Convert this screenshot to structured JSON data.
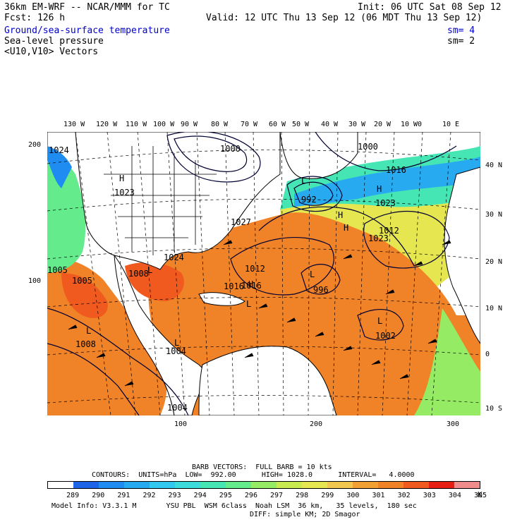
{
  "header": {
    "line1_left": "36km EM-WRF -- NCAR/MMM for TC",
    "line1_right": "Init: 06 UTC Sat 08 Sep 12",
    "line2_left": "Fcst: 126 h",
    "line2_right": "Valid: 12 UTC Thu 13 Sep 12 (06 MDT Thu 13 Sep 12)",
    "field1": "Ground/sea-surface temperature",
    "field1_sm": "sm= 4",
    "field2": "Sea-level pressure",
    "field2_sm": "sm= 2",
    "field3": "<U10,V10> Vectors"
  },
  "axes": {
    "top_lon_labels": [
      "130 W",
      "120 W",
      "110 W",
      "100 W",
      "90 W",
      "80 W",
      "70 W",
      "60 W",
      "50 W",
      "40 W",
      "30 W",
      "20 W",
      "10 W",
      "0",
      "10 E"
    ],
    "right_lat_labels": [
      "40 N",
      "30 N",
      "20 N",
      "10 N",
      "0",
      "10 S"
    ],
    "left_grid_labels": [
      "200",
      "100"
    ],
    "bottom_grid_labels": [
      "100",
      "200",
      "300"
    ]
  },
  "isobar_labels": [
    "1024",
    "1000",
    "1000",
    "1005",
    "1016",
    "1023",
    "992",
    "1023",
    "1027",
    "1012",
    "1016",
    "1023",
    "1024",
    "1012",
    "1008",
    "1005",
    "1016",
    "996",
    "1008",
    "1002",
    "1004",
    "1004"
  ],
  "pressure_markers": [
    "H",
    "H",
    "L",
    "L",
    "H",
    "H",
    "H",
    "L",
    "L",
    "L",
    "L",
    "L"
  ],
  "footer": {
    "barb_line": "BARB VECTORS:  FULL BARB = 10 kts",
    "contours_line": "CONTOURS:  UNITS=hPa  LOW=  992.00      HIGH= 1028.0      INTERVAL=   4.0000",
    "model_info": "Model Info: V3.3.1 M       YSU PBL  WSM 6class  Noah LSM  36 km,   35 levels,  180 sec",
    "diff_line": "DIFF: simple KM; 2D Smagor",
    "unit": "K"
  },
  "colorbar": {
    "labels": [
      "289",
      "290",
      "291",
      "292",
      "293",
      "294",
      "295",
      "296",
      "297",
      "298",
      "299",
      "300",
      "301",
      "302",
      "303",
      "304",
      "305"
    ],
    "colors": [
      "#ffffff",
      "#1e64e6",
      "#1e8cf0",
      "#28aaf0",
      "#32c8f0",
      "#3cdcdc",
      "#46e6b4",
      "#64eb8c",
      "#96eb64",
      "#c8eb50",
      "#e6e650",
      "#f0c850",
      "#f0a032",
      "#f08228",
      "#f05a1e",
      "#e61e14",
      "#f08c8c"
    ]
  },
  "colors": {
    "field_text": "#0000cc",
    "warm_sst": "#f08228",
    "hot_sst": "#f05a1e",
    "cool_sst": "#32c8f0",
    "land": "#ffffff"
  }
}
